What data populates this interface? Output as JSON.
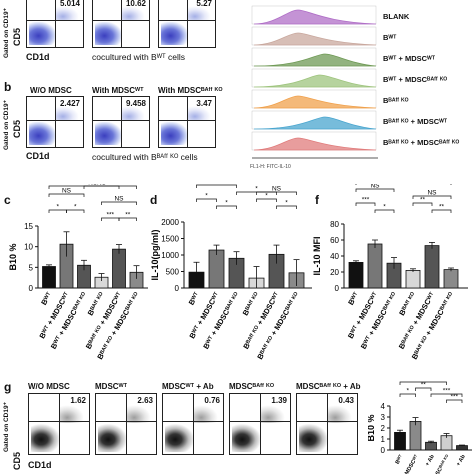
{
  "panels": {
    "a": {
      "gated_label": "Gated on CD19⁺",
      "y_axis": "CD5",
      "x_axis": "CD1d",
      "subtitle": "cocultured with Bᵂᵀ cells",
      "values": [
        "5.014",
        "10.62",
        "5.27"
      ]
    },
    "b": {
      "label": "b",
      "gated_label": "Gated on CD19⁺",
      "y_axis": "CD5",
      "x_axis": "CD1d",
      "subtitle": "cocultured with Bᴮᴬᶠᶠ ᴷᴼ cells",
      "headers": [
        "W/O MDSC",
        "With MDSCᵂᵀ",
        "With MDSCᴮᴬᶠᶠ ᴷᴼ"
      ],
      "values": [
        "2.427",
        "9.458",
        "3.47"
      ]
    },
    "histogram": {
      "x_axis": "FL1-H: FITC-IL-10",
      "rows": [
        {
          "label": "BLANK",
          "color": "#b06fc7"
        },
        {
          "label": "Bᵂᵀ",
          "color": "#c9a89e"
        },
        {
          "label": "Bᵂᵀ + MDSCᵂᵀ",
          "color": "#6f9a55"
        },
        {
          "label": "Bᵂᵀ + MDSCᴮᴬᶠᶠ ᴷᴼ",
          "color": "#9ec47d"
        },
        {
          "label": "Bᴮᴬᶠᶠ ᴷᴼ",
          "color": "#f0a14c"
        },
        {
          "label": "Bᴮᴬᶠᶠ ᴷᴼ + MDSCᵂᵀ",
          "color": "#4aa6cf"
        },
        {
          "label": "Bᴮᴬᶠᶠ ᴷᴼ + MDSCᴮᴬᶠᶠ ᴷᴼ",
          "color": "#e07c7c"
        }
      ]
    },
    "g": {
      "label": "g",
      "gated_label": "Gated on CD19⁺",
      "y_axis": "CD5",
      "x_axis": "CD1d",
      "headers": [
        "W/O MDSC",
        "MDSCᵂᵀ",
        "MDSCᵂᵀ + Ab",
        "MDSCᴮᴬᶠᶠ ᴷᴼ",
        "MDSCᴮᴬᶠᶠ ᴷᴼ + Ab"
      ],
      "values": [
        "1.62",
        "2.63",
        "0.76",
        "1.39",
        "0.43"
      ]
    }
  },
  "chart_data": [
    {
      "panel": "c",
      "type": "bar",
      "ylabel": "B10 %",
      "ylim": [
        0,
        15
      ],
      "yticks": [
        "0",
        "5",
        "10",
        "15"
      ],
      "categories": [
        "Bᵂᵀ",
        "Bᵂᵀ + MDSCᵂᵀ",
        "Bᵂᵀ + MDSCᴮᴬᶠᶠ ᴷᴼ",
        "Bᴮᴬᶠᶠ ᴷᴼ",
        "Bᴮᴬᶠᶠ ᴷᴼ + MDSCᵂᵀ",
        "Bᴮᴬᶠᶠ ᴷᴼ + MDSCᴮᴬᶠᶠ ᴷᴼ"
      ],
      "values": [
        5.2,
        10.6,
        5.5,
        2.6,
        9.4,
        3.8
      ],
      "errors": [
        0.4,
        3.0,
        1.2,
        0.9,
        1.1,
        1.6
      ],
      "colors": [
        "#111111",
        "#777777",
        "#555555",
        "#d8d8d8",
        "#555555",
        "#8a8a8a"
      ],
      "significance": [
        "NS",
        "NS",
        "NS",
        "*",
        "*",
        "NS",
        "***",
        "**"
      ]
    },
    {
      "panel": "d",
      "type": "bar",
      "ylabel": "IL-10(pg/ml)",
      "ylim": [
        0,
        2000
      ],
      "yticks": [
        "0",
        "500",
        "1000",
        "1500",
        "2000"
      ],
      "categories": [
        "Bᵂᵀ",
        "Bᵂᵀ + MDSCᵂᵀ",
        "Bᵂᵀ + MDSCᴮᴬᶠᶠ ᴷᴼ",
        "Bᴮᴬᶠᶠ ᴷᴼ",
        "Bᴮᴬᶠᶠ ᴷᴼ + MDSCᵂᵀ",
        "Bᴮᴬᶠᶠ ᴷᴼ + MDSCᴮᴬᶠᶠ ᴷᴼ"
      ],
      "values": [
        480,
        1150,
        900,
        300,
        1020,
        460
      ],
      "errors": [
        300,
        150,
        200,
        350,
        280,
        400
      ],
      "colors": [
        "#111111",
        "#777777",
        "#555555",
        "#d8d8d8",
        "#555555",
        "#8a8a8a"
      ],
      "significance": [
        "NS",
        "NS",
        "NS",
        "*",
        "*",
        "*",
        "*",
        "*"
      ]
    },
    {
      "panel": "f",
      "type": "bar",
      "ylabel": "IL-10 MFI",
      "ylim": [
        0,
        80
      ],
      "yticks": [
        "0",
        "20",
        "40",
        "60",
        "80"
      ],
      "categories": [
        "Bᵂᵀ",
        "Bᵂᵀ + MDSCᵂᵀ",
        "Bᵂᵀ + MDSCᴮᴬᶠᶠ ᴷᴼ",
        "Bᴮᴬᶠᶠ ᴷᴼ",
        "Bᴮᴬᶠᶠ ᴷᴼ + MDSCᵂᵀ",
        "Bᴮᴬᶠᶠ ᴷᴼ + MDSCᴮᴬᶠᶠ ᴷᴼ"
      ],
      "values": [
        32,
        55,
        31,
        22,
        53,
        23
      ],
      "errors": [
        2,
        5,
        7,
        2,
        4,
        2
      ],
      "colors": [
        "#111111",
        "#777777",
        "#555555",
        "#d8d8d8",
        "#555555",
        "#8a8a8a"
      ],
      "significance": [
        "NS",
        "NS",
        "NS",
        "***",
        "*",
        "**",
        "**"
      ]
    },
    {
      "panel": "g",
      "type": "bar",
      "ylabel": "B10 %",
      "ylim": [
        0,
        4
      ],
      "yticks": [
        "0",
        "1",
        "2",
        "3",
        "4"
      ],
      "categories": [
        "Bᵂᵀ",
        "Bᵂᵀ + MDSCᵂᵀ",
        "+ Ab",
        "MDSCᴮᴬᶠᶠ ᴷᴼ",
        "+ Ab"
      ],
      "values": [
        1.6,
        2.6,
        0.7,
        1.3,
        0.4
      ],
      "errors": [
        0.2,
        0.35,
        0.1,
        0.2,
        0.05
      ],
      "colors": [
        "#111111",
        "#8a8a8a",
        "#555555",
        "#cfcfcf",
        "#333333"
      ],
      "significance": [
        "*",
        "**",
        "**",
        "***",
        "***"
      ]
    }
  ]
}
